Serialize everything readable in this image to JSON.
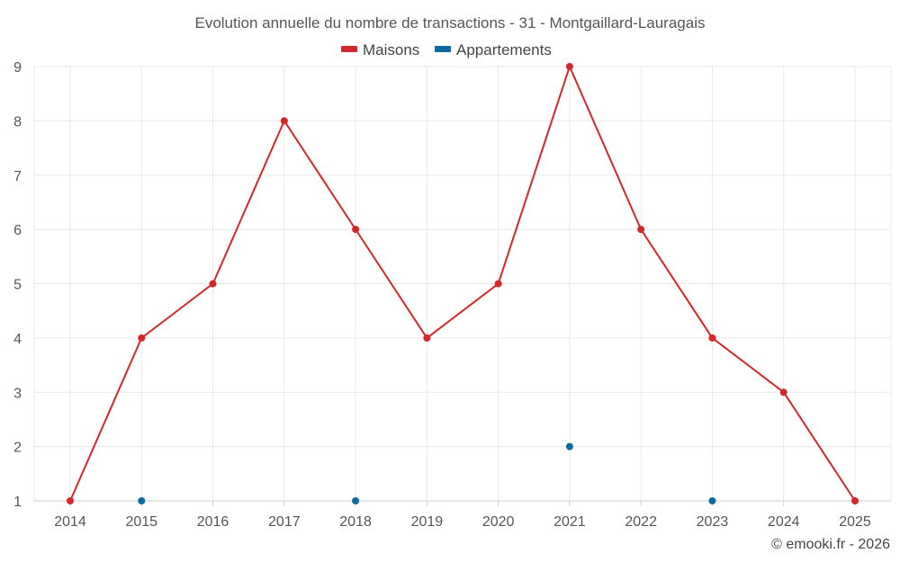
{
  "chart_data": {
    "type": "line",
    "title": "Evolution annuelle du nombre de transactions - 31 - Montgaillard-Lauragais",
    "categories": [
      "2014",
      "2015",
      "2016",
      "2017",
      "2018",
      "2019",
      "2020",
      "2021",
      "2022",
      "2023",
      "2024",
      "2025"
    ],
    "series": [
      {
        "name": "Maisons",
        "color": "#d62728",
        "values": [
          1,
          4,
          5,
          8,
          6,
          4,
          5,
          9,
          6,
          4,
          3,
          1
        ]
      },
      {
        "name": "Appartements",
        "color": "#0b6aa2",
        "values": [
          null,
          1,
          null,
          null,
          1,
          null,
          null,
          2,
          null,
          1,
          null,
          null
        ]
      }
    ],
    "yticks": [
      "1",
      "2",
      "3",
      "4",
      "5",
      "6",
      "7",
      "8",
      "9"
    ],
    "ylim": [
      1,
      9
    ],
    "grid": true,
    "legend_position": "top-center",
    "xlabel": "",
    "ylabel": ""
  },
  "credit": "© emooki.fr - 2026"
}
